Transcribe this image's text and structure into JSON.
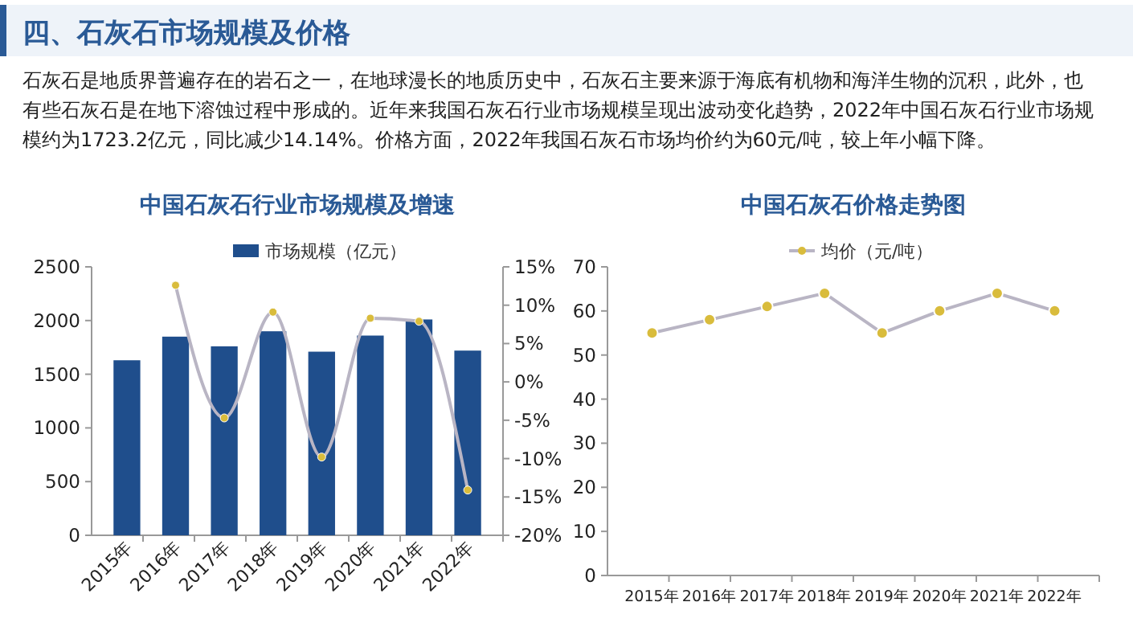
{
  "chart_data": [
    {
      "type": "other",
      "title": "四、石灰石市场规模及价格",
      "annotations": [
        "石灰石是地质界普遍存在的岩石之一，在地球漫长的地质历史中，石灰石主要来源于海底有机物和海洋生物的沉积，此外，也有些石灰石是在地下溶蚀过程中形成的。近年来我国石灰石行业市场规模呈现出波动变化趋势，2022年中国石灰石行业市场规模约为1723.2亿元，同比减少14.14%。价格方面，2022年我国石灰石市场均价约为60元/吨，较上年小幅下降。"
      ]
    },
    {
      "type": "bar",
      "title": "中国石灰石行业市场规模及增速",
      "categories": [
        "2015年",
        "2016年",
        "2017年",
        "2018年",
        "2019年",
        "2020年",
        "2021年",
        "2022年"
      ],
      "series": [
        {
          "name": "市场规模（亿元）",
          "color": "#1f4e8c",
          "values": [
            1630,
            1850,
            1760,
            1900,
            1710,
            1860,
            2010,
            1720
          ]
        },
        {
          "type": "line",
          "axis": "y2",
          "color": "#d9bc3c",
          "values": [
            null,
            12.6,
            -4.7,
            9.1,
            -9.8,
            8.3,
            7.9,
            -14.1
          ]
        }
      ],
      "ylim": [
        0,
        2500
      ],
      "yticks": [
        0,
        500,
        1000,
        1500,
        2000,
        2500
      ],
      "y2lim": [
        -20,
        15
      ],
      "y2ticks": [
        {
          "value": -20,
          "label": "-20%"
        },
        {
          "value": -15,
          "label": "-15%"
        },
        {
          "value": -10,
          "label": "-10%"
        },
        {
          "value": -5,
          "label": "-5%"
        },
        {
          "value": 0,
          "label": "0%"
        },
        {
          "value": 5,
          "label": "5%"
        },
        {
          "value": 10,
          "label": "10%"
        },
        {
          "value": 15,
          "label": "15%"
        }
      ],
      "legend": "top",
      "marker": "circle"
    },
    {
      "type": "line",
      "title": "中国石灰石价格走势图",
      "categories": [
        "2015年",
        "2016年",
        "2017年",
        "2018年",
        "2019年",
        "2020年",
        "2021年",
        "2022年"
      ],
      "series": [
        {
          "name": "均价（元/吨）",
          "color": "#d9bc3c",
          "values": [
            55,
            58,
            61,
            64,
            55,
            60,
            64,
            60
          ]
        }
      ],
      "ylim": [
        0,
        70
      ],
      "yticks": [
        0,
        10,
        20,
        30,
        40,
        50,
        60,
        70
      ],
      "legend": "top",
      "marker": "circle"
    }
  ]
}
